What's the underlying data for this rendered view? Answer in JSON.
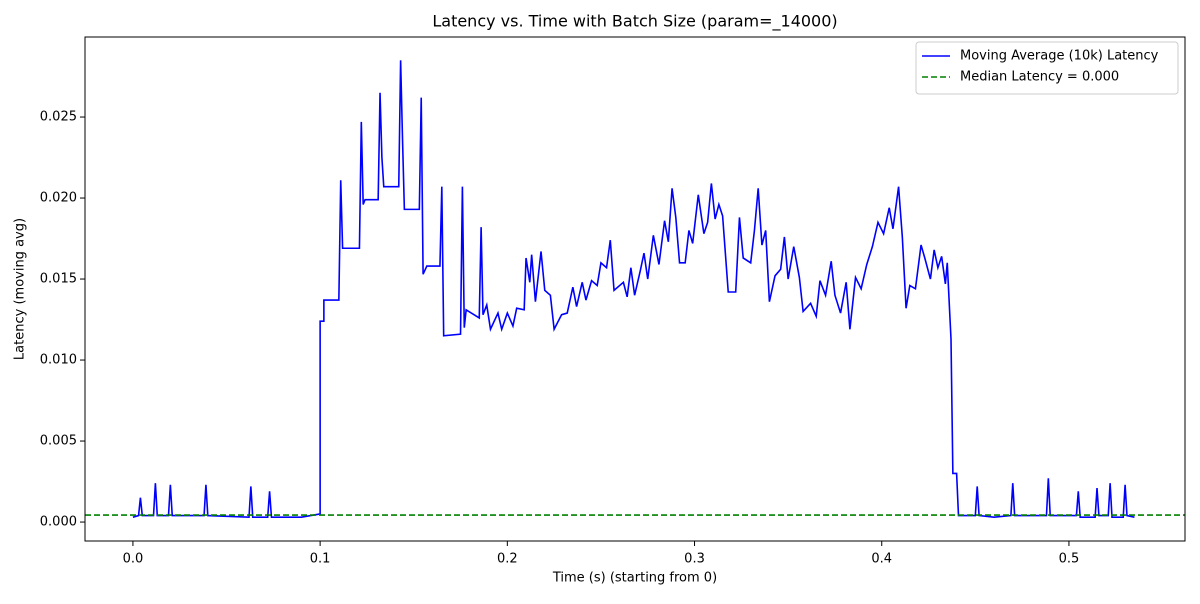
{
  "chart_data": {
    "type": "line",
    "title": "Latency vs. Time with Batch Size (param=_14000)",
    "xlabel": "Time (s) (starting from 0)",
    "ylabel": "Latency (moving avg)",
    "x": [
      0,
      0.003,
      0.004,
      0.005,
      0.011,
      0.012,
      0.013,
      0.019,
      0.02,
      0.021,
      0.038,
      0.039,
      0.04,
      0.062,
      0.063,
      0.064,
      0.072,
      0.073,
      0.074,
      0.09,
      0.1,
      0.1,
      0.102,
      0.102,
      0.11,
      0.111,
      0.112,
      0.121,
      0.122,
      0.123,
      0.124,
      0.131,
      0.132,
      0.133,
      0.134,
      0.142,
      0.143,
      0.144,
      0.145,
      0.153,
      0.154,
      0.155,
      0.157,
      0.164,
      0.165,
      0.166,
      0.175,
      0.176,
      0.177,
      0.178,
      0.185,
      0.186,
      0.187,
      0.189,
      0.191,
      0.195,
      0.197,
      0.2,
      0.203,
      0.205,
      0.209,
      0.21,
      0.212,
      0.213,
      0.215,
      0.218,
      0.22,
      0.223,
      0.225,
      0.229,
      0.232,
      0.235,
      0.237,
      0.24,
      0.242,
      0.245,
      0.248,
      0.25,
      0.253,
      0.255,
      0.257,
      0.262,
      0.264,
      0.266,
      0.268,
      0.271,
      0.273,
      0.275,
      0.278,
      0.281,
      0.284,
      0.286,
      0.288,
      0.29,
      0.292,
      0.295,
      0.297,
      0.299,
      0.302,
      0.305,
      0.307,
      0.309,
      0.311,
      0.313,
      0.315,
      0.318,
      0.322,
      0.324,
      0.326,
      0.33,
      0.332,
      0.334,
      0.336,
      0.338,
      0.34,
      0.343,
      0.346,
      0.348,
      0.35,
      0.353,
      0.356,
      0.358,
      0.362,
      0.365,
      0.367,
      0.37,
      0.373,
      0.375,
      0.378,
      0.381,
      0.383,
      0.386,
      0.389,
      0.392,
      0.395,
      0.398,
      0.401,
      0.404,
      0.406,
      0.409,
      0.411,
      0.413,
      0.415,
      0.418,
      0.421,
      0.423,
      0.426,
      0.428,
      0.43,
      0.432,
      0.434,
      0.435,
      0.437,
      0.438,
      0.44,
      0.441,
      0.45,
      0.451,
      0.452,
      0.46,
      0.469,
      0.47,
      0.471,
      0.488,
      0.489,
      0.49,
      0.504,
      0.505,
      0.506,
      0.514,
      0.515,
      0.516,
      0.521,
      0.522,
      0.523,
      0.529,
      0.53,
      0.531,
      0.535
    ],
    "series": [
      {
        "name": "Moving Average (10k) Latency",
        "color": "#0000ff",
        "values": [
          0.0003,
          0.0004,
          0.0015,
          0.0004,
          0.0004,
          0.0024,
          0.0004,
          0.0004,
          0.0023,
          0.0004,
          0.0004,
          0.0023,
          0.0004,
          0.0003,
          0.0022,
          0.0003,
          0.0003,
          0.0019,
          0.0003,
          0.0003,
          0.0005,
          0.0124,
          0.0124,
          0.0137,
          0.0137,
          0.0211,
          0.0169,
          0.0169,
          0.0247,
          0.0196,
          0.0199,
          0.0199,
          0.0265,
          0.0225,
          0.0207,
          0.0207,
          0.0285,
          0.0237,
          0.0193,
          0.0193,
          0.0262,
          0.0153,
          0.0158,
          0.0158,
          0.0207,
          0.0115,
          0.0116,
          0.0207,
          0.012,
          0.0131,
          0.0126,
          0.0182,
          0.0128,
          0.0134,
          0.0119,
          0.0129,
          0.0119,
          0.0129,
          0.0121,
          0.0132,
          0.0131,
          0.0163,
          0.0148,
          0.0165,
          0.0136,
          0.0167,
          0.0143,
          0.014,
          0.0119,
          0.0128,
          0.0129,
          0.0145,
          0.0133,
          0.0148,
          0.0137,
          0.0149,
          0.0146,
          0.016,
          0.0157,
          0.0174,
          0.0143,
          0.0148,
          0.0139,
          0.0157,
          0.014,
          0.0155,
          0.0166,
          0.015,
          0.0177,
          0.0159,
          0.0186,
          0.0173,
          0.0206,
          0.0188,
          0.016,
          0.016,
          0.018,
          0.0172,
          0.0202,
          0.0178,
          0.0185,
          0.0209,
          0.0187,
          0.0196,
          0.0189,
          0.0142,
          0.0142,
          0.0188,
          0.0163,
          0.016,
          0.018,
          0.0206,
          0.0171,
          0.018,
          0.0136,
          0.0152,
          0.0156,
          0.0176,
          0.015,
          0.017,
          0.0151,
          0.013,
          0.0135,
          0.0127,
          0.0149,
          0.014,
          0.0161,
          0.014,
          0.0129,
          0.0148,
          0.0119,
          0.0151,
          0.0144,
          0.0159,
          0.017,
          0.0185,
          0.0178,
          0.0194,
          0.0181,
          0.0207,
          0.0176,
          0.0132,
          0.0146,
          0.0144,
          0.0171,
          0.0163,
          0.015,
          0.0168,
          0.0157,
          0.0164,
          0.0147,
          0.016,
          0.0113,
          0.003,
          0.003,
          0.0004,
          0.0004,
          0.0022,
          0.0004,
          0.0003,
          0.0004,
          0.0024,
          0.0004,
          0.0004,
          0.0027,
          0.0004,
          0.0004,
          0.0019,
          0.0003,
          0.0003,
          0.0021,
          0.0004,
          0.0004,
          0.0024,
          0.0003,
          0.0003,
          0.0023,
          0.0004,
          0.0003
        ]
      }
    ],
    "hlines": [
      {
        "name": "Median Latency = 0.000",
        "value": 0.00043,
        "color": "#008000",
        "linestyle": "dashed"
      }
    ],
    "xlim": [
      -0.0256,
      0.562
    ],
    "ylim": [
      -0.00117,
      0.02994
    ],
    "xticks": [
      {
        "value": 0,
        "label": "0.0"
      },
      0.1,
      0.2,
      0.3,
      0.4,
      0.5
    ],
    "yticks": [
      {
        "value": 0,
        "label": "0.000"
      },
      0.005,
      {
        "value": 0.01,
        "label": "0.010"
      },
      0.015,
      {
        "value": 0.02,
        "label": "0.020"
      },
      0.025
    ],
    "legend": "upper right"
  }
}
